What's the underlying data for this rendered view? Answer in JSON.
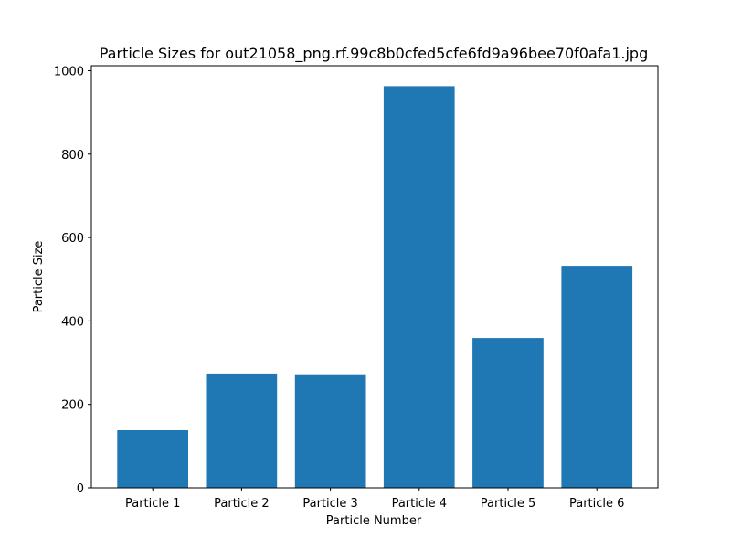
{
  "chart_data": {
    "type": "bar",
    "title": "Particle Sizes for out21058_png.rf.99c8b0cfed5cfe6fd9a96bee70f0afa1.jpg",
    "xlabel": "Particle Number",
    "ylabel": "Particle Size",
    "categories": [
      "Particle 1",
      "Particle 2",
      "Particle 3",
      "Particle 4",
      "Particle 5",
      "Particle 6"
    ],
    "values": [
      138,
      274,
      270,
      963,
      359,
      532
    ],
    "ylim": [
      0,
      1012
    ],
    "yticks": [
      0,
      200,
      400,
      600,
      800,
      1000
    ],
    "grid": false,
    "legend": "none",
    "bar_color": "#1f77b4"
  }
}
